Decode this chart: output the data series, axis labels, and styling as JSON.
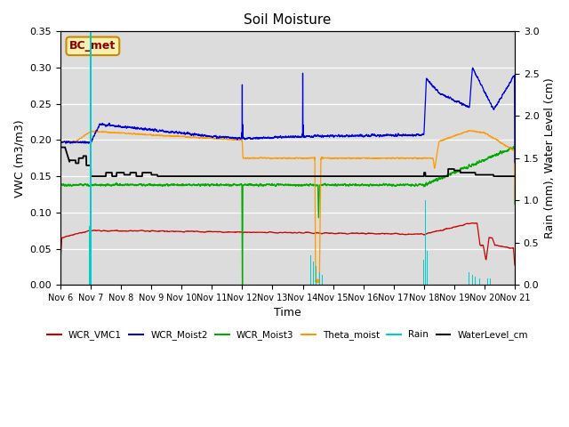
{
  "title": "Soil Moisture",
  "xlabel": "Time",
  "ylabel_left": "VWC (m3/m3)",
  "ylabel_right": "Rain (mm), Water Level (cm)",
  "ylim_left": [
    0.0,
    0.35
  ],
  "ylim_right": [
    0.0,
    3.0
  ],
  "annotation_text": "BC_met",
  "xtick_labels": [
    "Nov 6",
    "Nov 7",
    "Nov 8",
    "Nov 9",
    "Nov 10",
    "Nov 11",
    "Nov 12",
    "Nov 13",
    "Nov 14",
    "Nov 15",
    "Nov 16",
    "Nov 17",
    "Nov 18",
    "Nov 19",
    "Nov 20",
    "Nov 21"
  ],
  "colors": {
    "WCR_VMC1": "#cc0000",
    "WCR_Moist2": "#0000dd",
    "WCR_Moist3": "#00aa00",
    "Theta_moist": "#ff9900",
    "Rain": "#00cccc",
    "WaterLevel_cm": "#000000"
  },
  "bg_color": "#dcdcdc",
  "grid_color": "#ffffff"
}
